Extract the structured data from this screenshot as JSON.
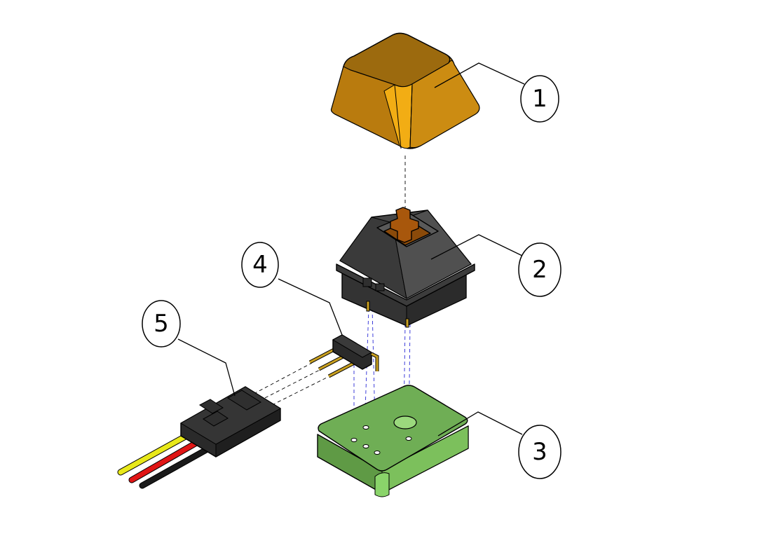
{
  "colors": {
    "keycap": "#c9860f",
    "keycap_dark": "#9c6a0e",
    "keycap_highlight": "#f2ad14",
    "switch_housing": "#3a3a3a",
    "switch_top": "#4a4a4a",
    "switch_stem": "#a8570c",
    "pcb": "#6aa84f",
    "pcb_top": "#6fae55",
    "pcb_edge": "#8ad46a",
    "header_pins": "#c9a020",
    "connector": "#2a2a2a",
    "wire_yellow": "#e8e81a",
    "wire_red": "#e01515",
    "wire_black": "#1a1a1a",
    "guide_black": "#000000",
    "guide_blue": "#2a2ad6"
  },
  "parts": {
    "keycap": {
      "callout": "1",
      "icon": "keycap-icon"
    },
    "switch": {
      "callout": "2",
      "icon": "key-switch-icon"
    },
    "pcb": {
      "callout": "3",
      "icon": "pcb-board-icon"
    },
    "header": {
      "callout": "4",
      "icon": "pin-header-icon"
    },
    "connector": {
      "callout": "5",
      "icon": "wire-connector-icon"
    }
  }
}
